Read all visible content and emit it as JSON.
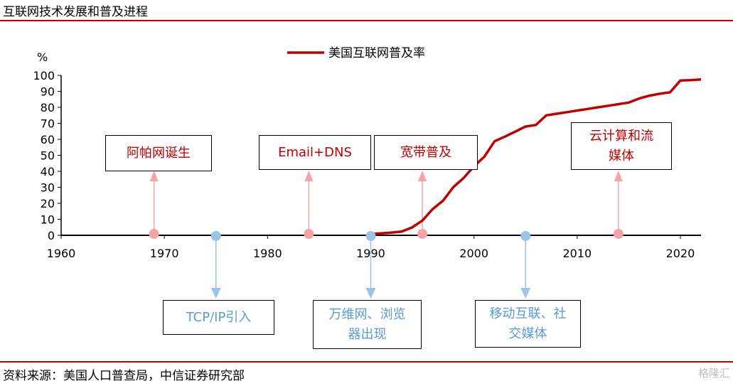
{
  "title": "互联网技术发展和普及进程",
  "source": "资料来源：美国人口普查局，中信证券研究部",
  "watermark": "格隆汇",
  "colors": {
    "series": "#c00000",
    "pink": "#f4a3a8",
    "blue": "#9dc3e6",
    "blue_text": "#5b9bd5"
  },
  "chart_data": {
    "type": "line",
    "ylabel": "%",
    "xlim": [
      1960,
      2022
    ],
    "ylim": [
      0,
      100
    ],
    "x_ticks": [
      "1960",
      "1970",
      "1980",
      "1990",
      "2000",
      "2010",
      "2020"
    ],
    "y_ticks": [
      "0",
      "10",
      "20",
      "30",
      "40",
      "50",
      "60",
      "70",
      "80",
      "90",
      "100"
    ],
    "legend_position": "top-center",
    "series": [
      {
        "name": "美国互联网普及率",
        "x": [
          1990,
          1991,
          1992,
          1993,
          1994,
          1995,
          1996,
          1997,
          1998,
          1999,
          2000,
          2001,
          2002,
          2003,
          2004,
          2005,
          2006,
          2007,
          2008,
          2009,
          2010,
          2011,
          2012,
          2013,
          2014,
          2015,
          2016,
          2017,
          2018,
          2019,
          2020,
          2021,
          2022
        ],
        "y": [
          0.8,
          1.2,
          1.7,
          2.3,
          4.9,
          9.2,
          16.4,
          21.6,
          30.1,
          35.8,
          43.1,
          49.1,
          58.8,
          61.7,
          64.8,
          68.0,
          69.0,
          75.0,
          76.0,
          77.0,
          78.0,
          79.0,
          80.0,
          81.0,
          82.0,
          83.0,
          85.5,
          87.3,
          88.5,
          89.4,
          96.8,
          97.0,
          97.4
        ]
      }
    ],
    "events": [
      {
        "year": 1969,
        "label": "阿帕网诞生",
        "type": "up"
      },
      {
        "year": 1975,
        "label": "TCP/IP引入",
        "type": "down"
      },
      {
        "year": 1984,
        "label": "Email+DNS",
        "type": "up"
      },
      {
        "year": 1990,
        "label": "万维网、浏览器出现",
        "type": "down"
      },
      {
        "year": 1995,
        "label": "宽带普及",
        "type": "up"
      },
      {
        "year": 2005,
        "label": "移动互联、社交媒体",
        "type": "down"
      },
      {
        "year": 2014,
        "label": "云计算和流媒体",
        "type": "up"
      }
    ]
  }
}
